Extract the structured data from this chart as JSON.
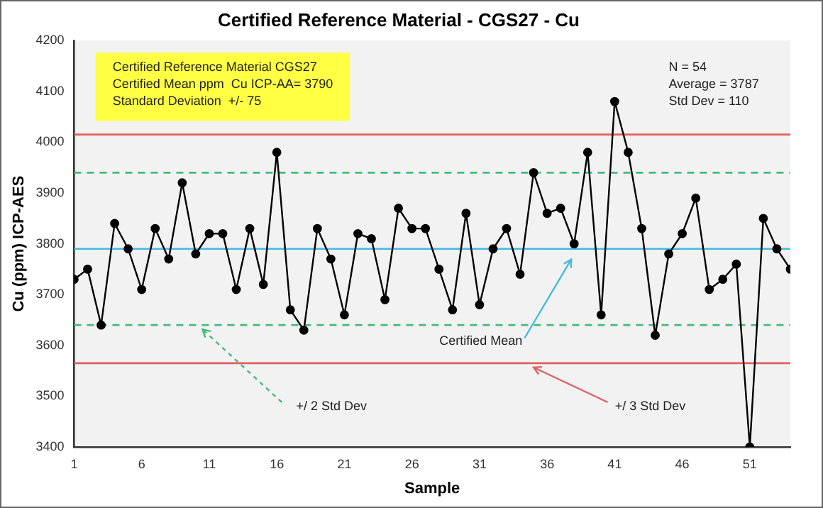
{
  "chart_data": {
    "type": "line",
    "title": "Certified Reference Material - CGS27 - Cu",
    "xlabel": "Sample",
    "ylabel": "Cu (ppm) ICP-AES",
    "x": [
      1,
      2,
      3,
      4,
      5,
      6,
      7,
      8,
      9,
      10,
      11,
      12,
      13,
      14,
      15,
      16,
      17,
      18,
      19,
      20,
      21,
      22,
      23,
      24,
      25,
      26,
      27,
      28,
      29,
      30,
      31,
      32,
      33,
      34,
      35,
      36,
      37,
      38,
      39,
      40,
      41,
      42,
      43,
      44,
      45,
      46,
      47,
      48,
      49,
      50,
      51,
      52,
      53,
      54
    ],
    "series": [
      {
        "color": "#000000",
        "values": [
          3730,
          3750,
          3640,
          3840,
          3790,
          3710,
          3830,
          3770,
          3920,
          3780,
          3820,
          3820,
          3710,
          3830,
          3720,
          3980,
          3670,
          3630,
          3830,
          3770,
          3660,
          3820,
          3810,
          3690,
          3870,
          3830,
          3830,
          3750,
          3670,
          3860,
          3680,
          3790,
          3830,
          3740,
          3940,
          3860,
          3870,
          3800,
          3980,
          3660,
          4080,
          3980,
          3830,
          3620,
          3780,
          3820,
          3890,
          3710,
          3730,
          3760,
          3400,
          3850,
          3790,
          3750
        ]
      }
    ],
    "xlim": [
      1,
      54
    ],
    "xticks": [
      1,
      6,
      11,
      16,
      21,
      26,
      31,
      36,
      41,
      46,
      51
    ],
    "ylim": [
      3400,
      4200
    ],
    "yticks": [
      3400,
      3500,
      3600,
      3700,
      3800,
      3900,
      4000,
      4100,
      4200
    ],
    "grid": false,
    "legend": false,
    "marker": "circle",
    "line_style": "solid",
    "ref_lines": [
      {
        "axis": "y",
        "value": 4015,
        "color": "#e06060",
        "line_style": "solid"
      },
      {
        "axis": "y",
        "value": 3565,
        "color": "#e06060",
        "line_style": "solid"
      },
      {
        "axis": "y",
        "value": 3940,
        "color": "#44bb77",
        "line_style": "dashed"
      },
      {
        "axis": "y",
        "value": 3640,
        "color": "#44bb77",
        "line_style": "dashed"
      },
      {
        "axis": "y",
        "value": 3790,
        "color": "#44bbdd",
        "line_style": "solid"
      }
    ],
    "annotations": [
      "Certified Reference Material CGS27\nCertified Mean ppm  Cu ICP-AA= 3790\nStandard Deviation  +/- 75",
      "N = 54\nAverage = 3787\nStd Dev = 110",
      {
        "text": "Certified Mean",
        "x": 38,
        "y": 3790
      },
      {
        "text": "+/ 2 Std Dev",
        "x": 10.5,
        "y": 3640
      },
      {
        "text": "+/ 3 Std Dev",
        "x": 35,
        "y": 3565
      }
    ]
  }
}
